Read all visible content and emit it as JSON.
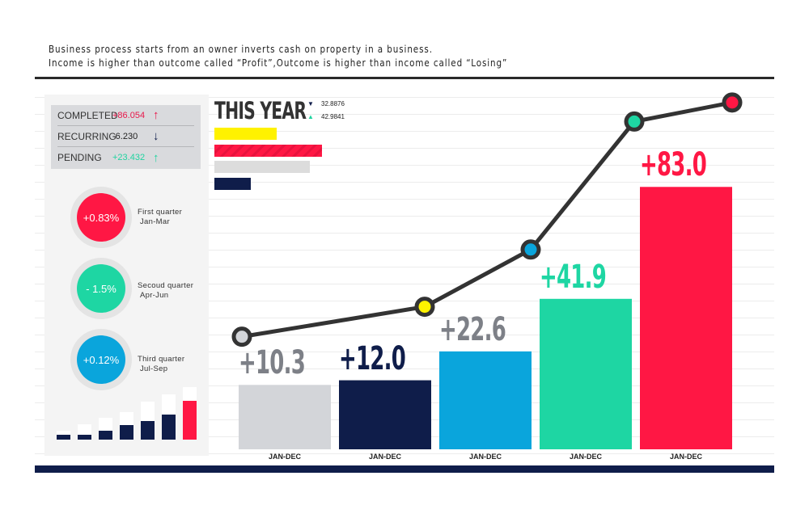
{
  "intro": [
    "Business process starts from an owner inverts cash on property in a business.",
    "Income is higher than outcome called “Profit”,Outcome is higher than income called “Losing”"
  ],
  "stats": [
    {
      "label": "COMPLETED",
      "value": "+86.054",
      "arrow": "↑",
      "color": "#e8174a"
    },
    {
      "label": "RECURRING",
      "value": "-6.230",
      "arrow": "↓",
      "color": "#0f1d4a"
    },
    {
      "label": "PENDING",
      "value": "+23.432",
      "arrow": "↑",
      "color": "#20d4a0"
    }
  ],
  "quarters": [
    {
      "value": "+0.83%",
      "name": "First quarter",
      "range": "Jan-Mar",
      "color": "#ff1744"
    },
    {
      "value": "- 1.5%",
      "name": "Secoud quarter",
      "range": "Apr-Jun",
      "color": "#1ed6a3"
    },
    {
      "value": "+0.12%",
      "name": "Third quarter",
      "range": "Jul-Sep",
      "color": "#0aa5dc"
    }
  ],
  "this_year": {
    "title": "THIS YEAR",
    "legend": [
      {
        "marker": "▼",
        "value": "32.8876",
        "color": "#0f1d4a"
      },
      {
        "marker": "▲",
        "value": "42.9841",
        "color": "#20d4a0"
      }
    ],
    "bars": [
      {
        "fraction": 0.58,
        "color": "#fff200"
      },
      {
        "fraction": 1.0,
        "color": "#ff1744"
      },
      {
        "fraction": 0.89,
        "color": "#dcdcdc"
      },
      {
        "fraction": 0.34,
        "color": "#0f1d4a"
      }
    ]
  },
  "mini_bars": {
    "totals": [
      11,
      19,
      27,
      34,
      47,
      56,
      65
    ],
    "filled": [
      6,
      6,
      11,
      18,
      23,
      31,
      48
    ],
    "colors": [
      "#0f1d4a",
      "#0f1d4a",
      "#0f1d4a",
      "#0f1d4a",
      "#0f1d4a",
      "#0f1d4a",
      "#ff1744"
    ]
  },
  "chart_data": {
    "type": "bar",
    "categories": [
      "JAN-DEC",
      "JAN-DEC",
      "JAN-DEC",
      "JAN-DEC",
      "JAN-DEC"
    ],
    "values": [
      10.3,
      12.0,
      22.6,
      41.9,
      83.0
    ],
    "labels": [
      "+10.3",
      "+12.0",
      "+22.6",
      "+41.9",
      "+83.0"
    ],
    "colors": [
      "#d3d5d9",
      "#0f1d4a",
      "#0aa5dc",
      "#1ed6a3",
      "#ff1744"
    ],
    "label_colors": [
      "#7d8087",
      "#0f1d4a",
      "#7d8087",
      "#1ed6a3",
      "#ff1744"
    ],
    "line": {
      "values": [
        28,
        39,
        60,
        107,
        114
      ],
      "marker_colors": [
        "#d3d5d9",
        "#fff200",
        "#0aa5dc",
        "#1ed6a3",
        "#ff1744"
      ],
      "color": "#333333"
    },
    "grid": true
  }
}
